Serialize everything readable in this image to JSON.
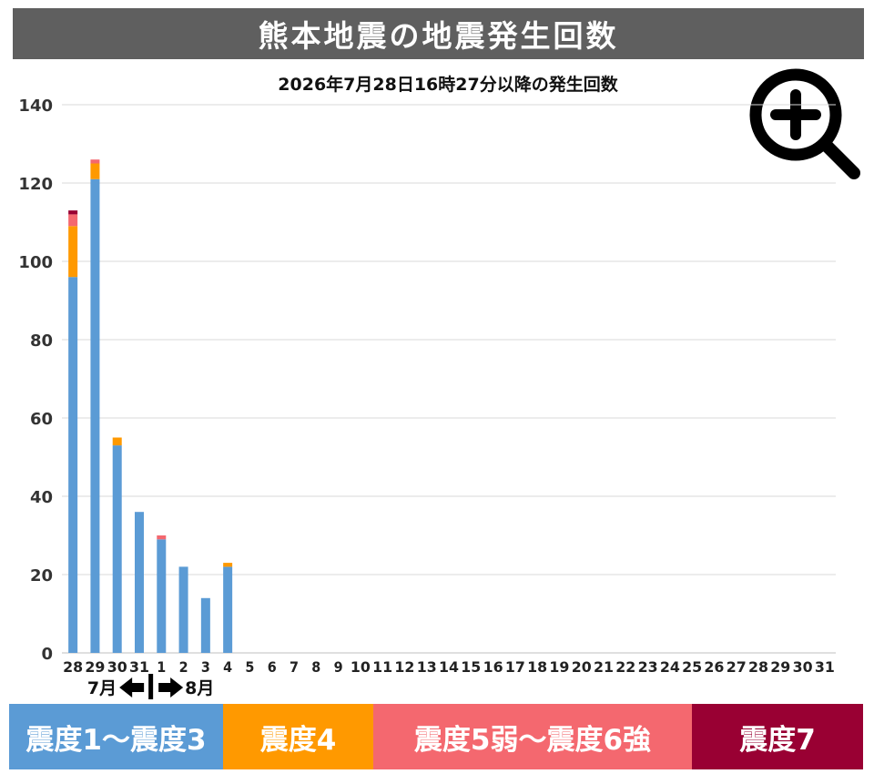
{
  "header": {
    "title": "熊本地震の地震発生回数",
    "subtitle": "2026年7月28日16時27分以降の発生回数"
  },
  "icons": {
    "zoom": "zoom-in-icon"
  },
  "chart_data": {
    "type": "bar",
    "stacked": true,
    "categories": [
      "28",
      "29",
      "30",
      "31",
      "1",
      "2",
      "3",
      "4",
      "5",
      "6",
      "7",
      "8",
      "9",
      "10",
      "11",
      "12",
      "13",
      "14",
      "15",
      "16",
      "17",
      "18",
      "19",
      "20",
      "21",
      "22",
      "23",
      "24",
      "25",
      "26",
      "27",
      "28",
      "29",
      "30",
      "31"
    ],
    "series": [
      {
        "name": "震度1～震度3",
        "color": "#5b9bd5",
        "values": [
          96,
          121,
          53,
          36,
          29,
          22,
          14,
          22,
          0,
          0,
          0,
          0,
          0,
          0,
          0,
          0,
          0,
          0,
          0,
          0,
          0,
          0,
          0,
          0,
          0,
          0,
          0,
          0,
          0,
          0,
          0,
          0,
          0,
          0,
          0
        ]
      },
      {
        "name": "震度4",
        "color": "#ff9900",
        "values": [
          13,
          4,
          2,
          0,
          0,
          0,
          0,
          1,
          0,
          0,
          0,
          0,
          0,
          0,
          0,
          0,
          0,
          0,
          0,
          0,
          0,
          0,
          0,
          0,
          0,
          0,
          0,
          0,
          0,
          0,
          0,
          0,
          0,
          0,
          0
        ]
      },
      {
        "name": "震度5弱～震度6強",
        "color": "#f4686f",
        "values": [
          3,
          1,
          0,
          0,
          1,
          0,
          0,
          0,
          0,
          0,
          0,
          0,
          0,
          0,
          0,
          0,
          0,
          0,
          0,
          0,
          0,
          0,
          0,
          0,
          0,
          0,
          0,
          0,
          0,
          0,
          0,
          0,
          0,
          0,
          0
        ]
      },
      {
        "name": "震度7",
        "color": "#990033",
        "values": [
          1,
          0,
          0,
          0,
          0,
          0,
          0,
          0,
          0,
          0,
          0,
          0,
          0,
          0,
          0,
          0,
          0,
          0,
          0,
          0,
          0,
          0,
          0,
          0,
          0,
          0,
          0,
          0,
          0,
          0,
          0,
          0,
          0,
          0,
          0
        ]
      }
    ],
    "ylim": [
      0,
      140
    ],
    "yticks": [
      0,
      20,
      40,
      60,
      80,
      100,
      120,
      140
    ],
    "grid": true,
    "month_labels": {
      "left": "7月",
      "right": "8月"
    },
    "legend_position": "bottom"
  }
}
